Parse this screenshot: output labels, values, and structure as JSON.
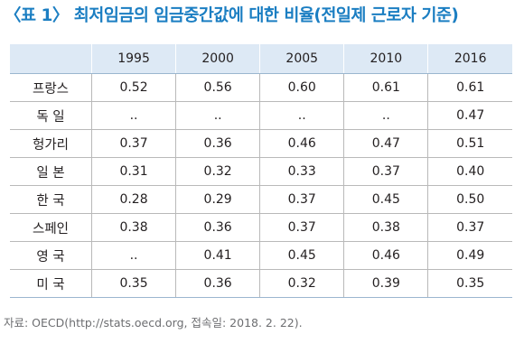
{
  "title": "〈표 1〉 최저임금의 임금중간값에 대한 비율(전일제 근로자 기준)",
  "table": {
    "corner": "",
    "columns": [
      "1995",
      "2000",
      "2005",
      "2010",
      "2016"
    ],
    "rows": [
      {
        "label": "프랑스",
        "values": [
          "0.52",
          "0.56",
          "0.60",
          "0.61",
          "0.61"
        ]
      },
      {
        "label": "독 일",
        "values": [
          "..",
          "..",
          "..",
          "..",
          "0.47"
        ]
      },
      {
        "label": "헝가리",
        "values": [
          "0.37",
          "0.36",
          "0.46",
          "0.47",
          "0.51"
        ]
      },
      {
        "label": "일 본",
        "values": [
          "0.31",
          "0.32",
          "0.33",
          "0.37",
          "0.40"
        ]
      },
      {
        "label": "한 국",
        "values": [
          "0.28",
          "0.29",
          "0.37",
          "0.45",
          "0.50"
        ]
      },
      {
        "label": "스페인",
        "values": [
          "0.38",
          "0.36",
          "0.37",
          "0.38",
          "0.37"
        ]
      },
      {
        "label": "영 국",
        "values": [
          "..",
          "0.41",
          "0.45",
          "0.46",
          "0.49"
        ]
      },
      {
        "label": "미 국",
        "values": [
          "0.35",
          "0.36",
          "0.32",
          "0.39",
          "0.35"
        ]
      }
    ]
  },
  "source": "자료: OECD(http://stats.oecd.org, 접속일: 2018. 2. 22)."
}
